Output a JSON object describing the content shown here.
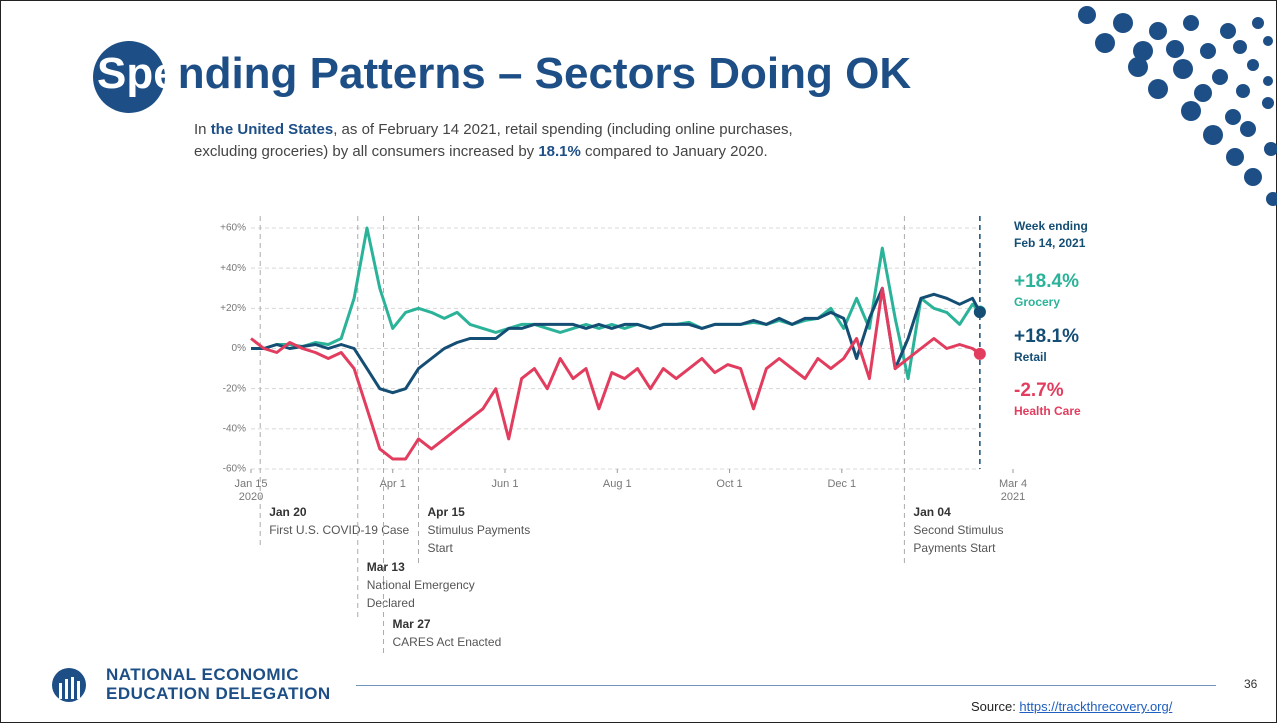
{
  "slide": {
    "title_first": "Spe",
    "title_rest": "nding Patterns – Sectors Doing OK",
    "subtitle_parts": [
      "In ",
      "the United States",
      ", as of February 14 2021, retail spending (including online purchases, excluding groceries) by all consumers increased by ",
      "18.1%",
      " compared to January 2020."
    ],
    "logo_line1": "NATIONAL ECONOMIC",
    "logo_line2": "EDUCATION DELEGATION",
    "page_number": "36",
    "source_label": "Source: ",
    "source_link": "https://trackthrecovery.org/"
  },
  "chart_data": {
    "type": "line",
    "x": [
      "2020-01-15",
      "2020-01-22",
      "2020-01-29",
      "2020-02-05",
      "2020-02-12",
      "2020-02-19",
      "2020-02-26",
      "2020-03-04",
      "2020-03-11",
      "2020-03-18",
      "2020-03-25",
      "2020-04-01",
      "2020-04-08",
      "2020-04-15",
      "2020-04-22",
      "2020-04-29",
      "2020-05-06",
      "2020-05-13",
      "2020-05-20",
      "2020-05-27",
      "2020-06-03",
      "2020-06-10",
      "2020-06-17",
      "2020-06-24",
      "2020-07-01",
      "2020-07-08",
      "2020-07-15",
      "2020-07-22",
      "2020-07-29",
      "2020-08-05",
      "2020-08-12",
      "2020-08-19",
      "2020-08-26",
      "2020-09-02",
      "2020-09-09",
      "2020-09-16",
      "2020-09-23",
      "2020-09-30",
      "2020-10-07",
      "2020-10-14",
      "2020-10-21",
      "2020-10-28",
      "2020-11-04",
      "2020-11-11",
      "2020-11-18",
      "2020-11-25",
      "2020-12-02",
      "2020-12-09",
      "2020-12-16",
      "2020-12-23",
      "2020-12-30",
      "2021-01-06",
      "2021-01-13",
      "2021-01-20",
      "2021-01-27",
      "2021-02-03",
      "2021-02-10",
      "2021-02-14"
    ],
    "series": [
      {
        "name": "Grocery",
        "color": "#2bb39a",
        "end_label": "+18.4%",
        "values": [
          0,
          0,
          2,
          2,
          1,
          3,
          2,
          5,
          25,
          60,
          30,
          10,
          18,
          20,
          18,
          15,
          18,
          12,
          10,
          8,
          10,
          12,
          12,
          10,
          8,
          10,
          12,
          10,
          12,
          10,
          12,
          10,
          12,
          12,
          13,
          10,
          12,
          12,
          12,
          13,
          12,
          14,
          12,
          14,
          15,
          20,
          10,
          25,
          10,
          50,
          15,
          -15,
          25,
          20,
          18,
          12,
          22,
          18.4
        ]
      },
      {
        "name": "Retail",
        "color": "#154e74",
        "end_label": "+18.1%",
        "values": [
          0,
          0,
          2,
          0,
          1,
          2,
          0,
          2,
          0,
          -10,
          -20,
          -22,
          -20,
          -10,
          -5,
          0,
          3,
          5,
          5,
          5,
          10,
          10,
          12,
          12,
          12,
          12,
          10,
          12,
          10,
          12,
          12,
          10,
          12,
          12,
          12,
          10,
          12,
          12,
          12,
          14,
          12,
          15,
          12,
          15,
          15,
          18,
          15,
          -5,
          15,
          30,
          -10,
          5,
          25,
          27,
          25,
          22,
          25,
          18.1
        ]
      },
      {
        "name": "Health Care",
        "color": "#e23d5e",
        "end_label": "-2.7%",
        "values": [
          5,
          0,
          -2,
          3,
          0,
          -2,
          -5,
          -2,
          -10,
          -30,
          -50,
          -55,
          -55,
          -45,
          -50,
          -45,
          -40,
          -35,
          -30,
          -20,
          -45,
          -15,
          -10,
          -20,
          -5,
          -15,
          -10,
          -30,
          -12,
          -15,
          -10,
          -20,
          -10,
          -15,
          -10,
          -5,
          -12,
          -8,
          -10,
          -30,
          -10,
          -5,
          -10,
          -15,
          -5,
          -10,
          -5,
          5,
          -15,
          30,
          -10,
          -5,
          0,
          5,
          0,
          2,
          0,
          -2.7
        ]
      }
    ],
    "xlim": [
      "2020-01-15",
      "2021-03-04"
    ],
    "xticks": [
      {
        "value": "2020-01-15",
        "label": "Jan 15",
        "sublabel": "2020"
      },
      {
        "value": "2020-04-01",
        "label": "Apr 1"
      },
      {
        "value": "2020-06-01",
        "label": "Jun 1"
      },
      {
        "value": "2020-08-01",
        "label": "Aug 1"
      },
      {
        "value": "2020-10-01",
        "label": "Oct 1"
      },
      {
        "value": "2020-12-01",
        "label": "Dec 1"
      },
      {
        "value": "2021-03-04",
        "label": "Mar 4",
        "sublabel": "2021"
      }
    ],
    "ylim": [
      -60,
      60
    ],
    "yticks": [
      {
        "value": -60,
        "label": "-60%"
      },
      {
        "value": -40,
        "label": "-40%"
      },
      {
        "value": -20,
        "label": "-20%"
      },
      {
        "value": 0,
        "label": "0%"
      },
      {
        "value": 20,
        "label": "+20%"
      },
      {
        "value": 40,
        "label": "+40%"
      },
      {
        "value": 60,
        "label": "+60%"
      }
    ],
    "grid": true,
    "marker_line": {
      "x": "2021-02-14",
      "lines": [
        "Week ending",
        "Feb 14, 2021"
      ]
    },
    "annotations": [
      {
        "x": "2020-01-20",
        "label": "Jan 20",
        "lines": [
          "First U.S. COVID-19 Case"
        ]
      },
      {
        "x": "2020-03-13",
        "label": "Mar 13",
        "lines": [
          "National Emergency",
          "Declared"
        ]
      },
      {
        "x": "2020-03-27",
        "label": "Mar 27",
        "lines": [
          "CARES Act Enacted"
        ]
      },
      {
        "x": "2020-04-15",
        "label": "Apr 15",
        "lines": [
          "Stimulus Payments",
          "Start"
        ]
      },
      {
        "x": "2021-01-04",
        "label": "Jan 04",
        "lines": [
          "Second Stimulus",
          "Payments Start"
        ]
      }
    ]
  }
}
